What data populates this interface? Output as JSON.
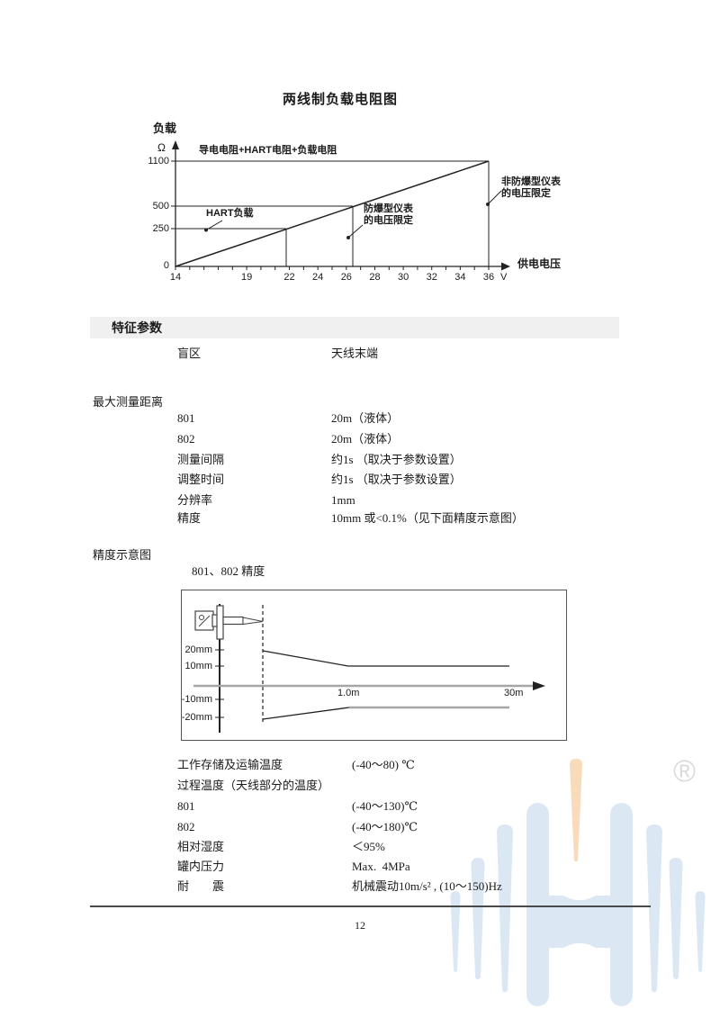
{
  "page": {
    "title": "两线制负载电阻图",
    "number": "12"
  },
  "colors": {
    "accent_blue": "#dbe8f4",
    "accent_orange": "#f8dcba",
    "gray_line": "#a6a6a6",
    "section_bg": "#f0f0f0"
  },
  "load_chart": {
    "y_axis_title": "负载",
    "y_unit": "Ω",
    "x_axis_title": "供电电压",
    "x_unit": "V",
    "y_tick_labels": [
      "1100",
      "500",
      "250",
      "0"
    ],
    "x_ticks": [
      14,
      19,
      22,
      24,
      26,
      28,
      30,
      32,
      34,
      36
    ],
    "label_total": "导电电阻+HART电阻+负载电阻",
    "label_hart": "HART负载",
    "label_ex_line1": "防爆型仪表",
    "label_ex_line2": "的电压限定",
    "label_nonex_line1": "非防爆型仪表",
    "label_nonex_line2": "的电压限定"
  },
  "sections": {
    "characteristics": {
      "title": "特征参数",
      "rows": [
        {
          "label": "盲区",
          "value": "天线末端"
        }
      ]
    },
    "max_distance": {
      "title": "最大测量距离",
      "rows": [
        {
          "label": "801",
          "value": "20m（液体）"
        },
        {
          "label": "802",
          "value": "20m（液体）"
        },
        {
          "label": "测量间隔",
          "value": "约1s （取决于参数设置）"
        },
        {
          "label": "调整时间",
          "value": "约1s （取决于参数设置）"
        },
        {
          "label": "分辨率",
          "value": "1mm"
        },
        {
          "label": "精度",
          "value": "10mm 或<0.1%（见下面精度示意图）"
        }
      ]
    },
    "accuracy": {
      "title": "精度示意图",
      "subtitle": "801、802 精度",
      "y_labels": [
        "20mm",
        "10mm",
        "-10mm",
        "-20mm"
      ],
      "x_label_mid": "1.0m",
      "x_label_end": "30m"
    },
    "environment": {
      "rows": [
        {
          "label": "工作存储及运输温度",
          "value": "(-40～80) ℃"
        },
        {
          "label": "过程温度（天线部分的温度）",
          "value": ""
        },
        {
          "label": "801",
          "value": "(-40～130)℃"
        },
        {
          "label": "802",
          "value": "(-40～180)℃"
        },
        {
          "label": "相对湿度",
          "value": "＜95%"
        },
        {
          "label": "罐内压力",
          "value": "Max.  4MPa"
        },
        {
          "label": "耐　　震",
          "value": "机械震动10m/s² , (10～150)Hz"
        }
      ]
    }
  },
  "watermark": {
    "registered": "®"
  },
  "chart_data": [
    {
      "type": "line",
      "title": "两线制负载电阻图",
      "xlabel": "供电电压 (V)",
      "ylabel": "负载 (Ω)",
      "xlim": [
        14,
        36
      ],
      "ylim": [
        0,
        1100
      ],
      "x_ticks": [
        14,
        19,
        22,
        24,
        26,
        28,
        30,
        32,
        34,
        36
      ],
      "y_ticks": [
        0,
        250,
        500,
        1100
      ],
      "grid": false,
      "series": [
        {
          "name": "导电电阻+HART电阻+负载电阻",
          "x": [
            14,
            36
          ],
          "y": [
            0,
            1100
          ]
        }
      ],
      "annotations": [
        {
          "label": "HART负载",
          "y": 250,
          "x_intersect": 21.4
        },
        {
          "label": "防爆型仪表的电压限定",
          "x": 26.4,
          "y_intersect": 500
        },
        {
          "label": "非防爆型仪表的电压限定",
          "x": 36,
          "y_intersect": 1100
        }
      ]
    },
    {
      "type": "line",
      "title": "801、802 精度",
      "xlabel": "1.0m … 30m",
      "ylabel": "mm",
      "y_ticks_mm": [
        20,
        10,
        -10,
        -20
      ],
      "series": [
        {
          "name": "upper_accuracy_limit",
          "points_m_mm": [
            [
              0,
              20
            ],
            [
              1.0,
              10
            ],
            [
              30,
              10
            ]
          ]
        },
        {
          "name": "lower_accuracy_limit",
          "points_m_mm": [
            [
              0,
              -20
            ],
            [
              1.0,
              -10
            ],
            [
              30,
              -10
            ]
          ]
        }
      ]
    }
  ]
}
